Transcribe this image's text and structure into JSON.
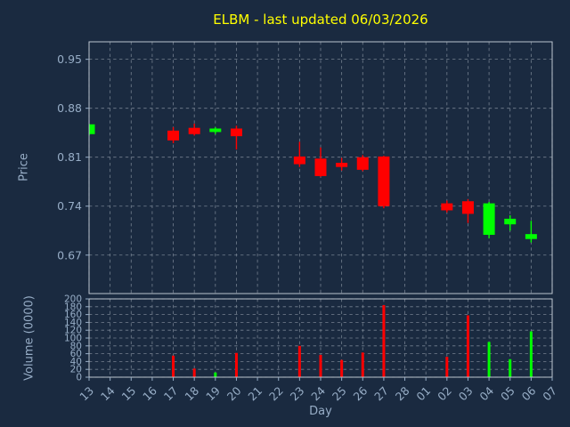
{
  "colors": {
    "background": "#1a2a40",
    "title": "#ffff00",
    "text": "#97adc6",
    "grid": "#cdd5de",
    "spine": "#cdd5de",
    "up": "#00ff00",
    "down": "#ff0000"
  },
  "chart_data": {
    "type": "candlestick",
    "title": "ELBM - last updated 06/03/2026",
    "xlabel": "Day",
    "price_ylabel": "Price",
    "volume_ylabel": "Volume (0000)",
    "legend_position": "none",
    "grid": true,
    "x_ticks": [
      "13",
      "14",
      "15",
      "16",
      "17",
      "18",
      "19",
      "20",
      "21",
      "22",
      "23",
      "24",
      "25",
      "26",
      "27",
      "28",
      "01",
      "02",
      "03",
      "04",
      "05",
      "06",
      "07"
    ],
    "price_ytick_labels": [
      "0.95",
      "0.88",
      "0.81",
      "0.74",
      "0.67"
    ],
    "price_ylim": [
      0.615,
      0.975
    ],
    "volume_yticks": [
      200,
      180,
      160,
      140,
      120,
      100,
      80,
      60,
      40,
      20,
      0
    ],
    "volume_ylim": [
      0,
      200
    ],
    "candles": [
      {
        "day": "13",
        "open": 0.843,
        "high": 0.858,
        "low": 0.841,
        "close": 0.857,
        "volume": 0
      },
      {
        "day": "17",
        "open": 0.848,
        "high": 0.853,
        "low": 0.83,
        "close": 0.834,
        "volume": 55
      },
      {
        "day": "18",
        "open": 0.852,
        "high": 0.858,
        "low": 0.841,
        "close": 0.843,
        "volume": 22
      },
      {
        "day": "19",
        "open": 0.846,
        "high": 0.853,
        "low": 0.843,
        "close": 0.851,
        "volume": 12
      },
      {
        "day": "20",
        "open": 0.851,
        "high": 0.855,
        "low": 0.821,
        "close": 0.84,
        "volume": 62
      },
      {
        "day": "23",
        "open": 0.811,
        "high": 0.832,
        "low": 0.796,
        "close": 0.8,
        "volume": 80
      },
      {
        "day": "24",
        "open": 0.808,
        "high": 0.824,
        "low": 0.782,
        "close": 0.783,
        "volume": 57
      },
      {
        "day": "25",
        "open": 0.802,
        "high": 0.809,
        "low": 0.791,
        "close": 0.796,
        "volume": 44
      },
      {
        "day": "26",
        "open": 0.81,
        "high": 0.813,
        "low": 0.79,
        "close": 0.792,
        "volume": 63
      },
      {
        "day": "27",
        "open": 0.811,
        "high": 0.812,
        "low": 0.737,
        "close": 0.74,
        "volume": 184
      },
      {
        "day": "02",
        "open": 0.744,
        "high": 0.748,
        "low": 0.731,
        "close": 0.734,
        "volume": 52
      },
      {
        "day": "03",
        "open": 0.747,
        "high": 0.75,
        "low": 0.716,
        "close": 0.729,
        "volume": 158
      },
      {
        "day": "04",
        "open": 0.699,
        "high": 0.746,
        "low": 0.694,
        "close": 0.744,
        "volume": 90
      },
      {
        "day": "05",
        "open": 0.714,
        "high": 0.727,
        "low": 0.705,
        "close": 0.722,
        "volume": 46
      },
      {
        "day": "06",
        "open": 0.693,
        "high": 0.719,
        "low": 0.688,
        "close": 0.7,
        "volume": 117
      }
    ]
  }
}
